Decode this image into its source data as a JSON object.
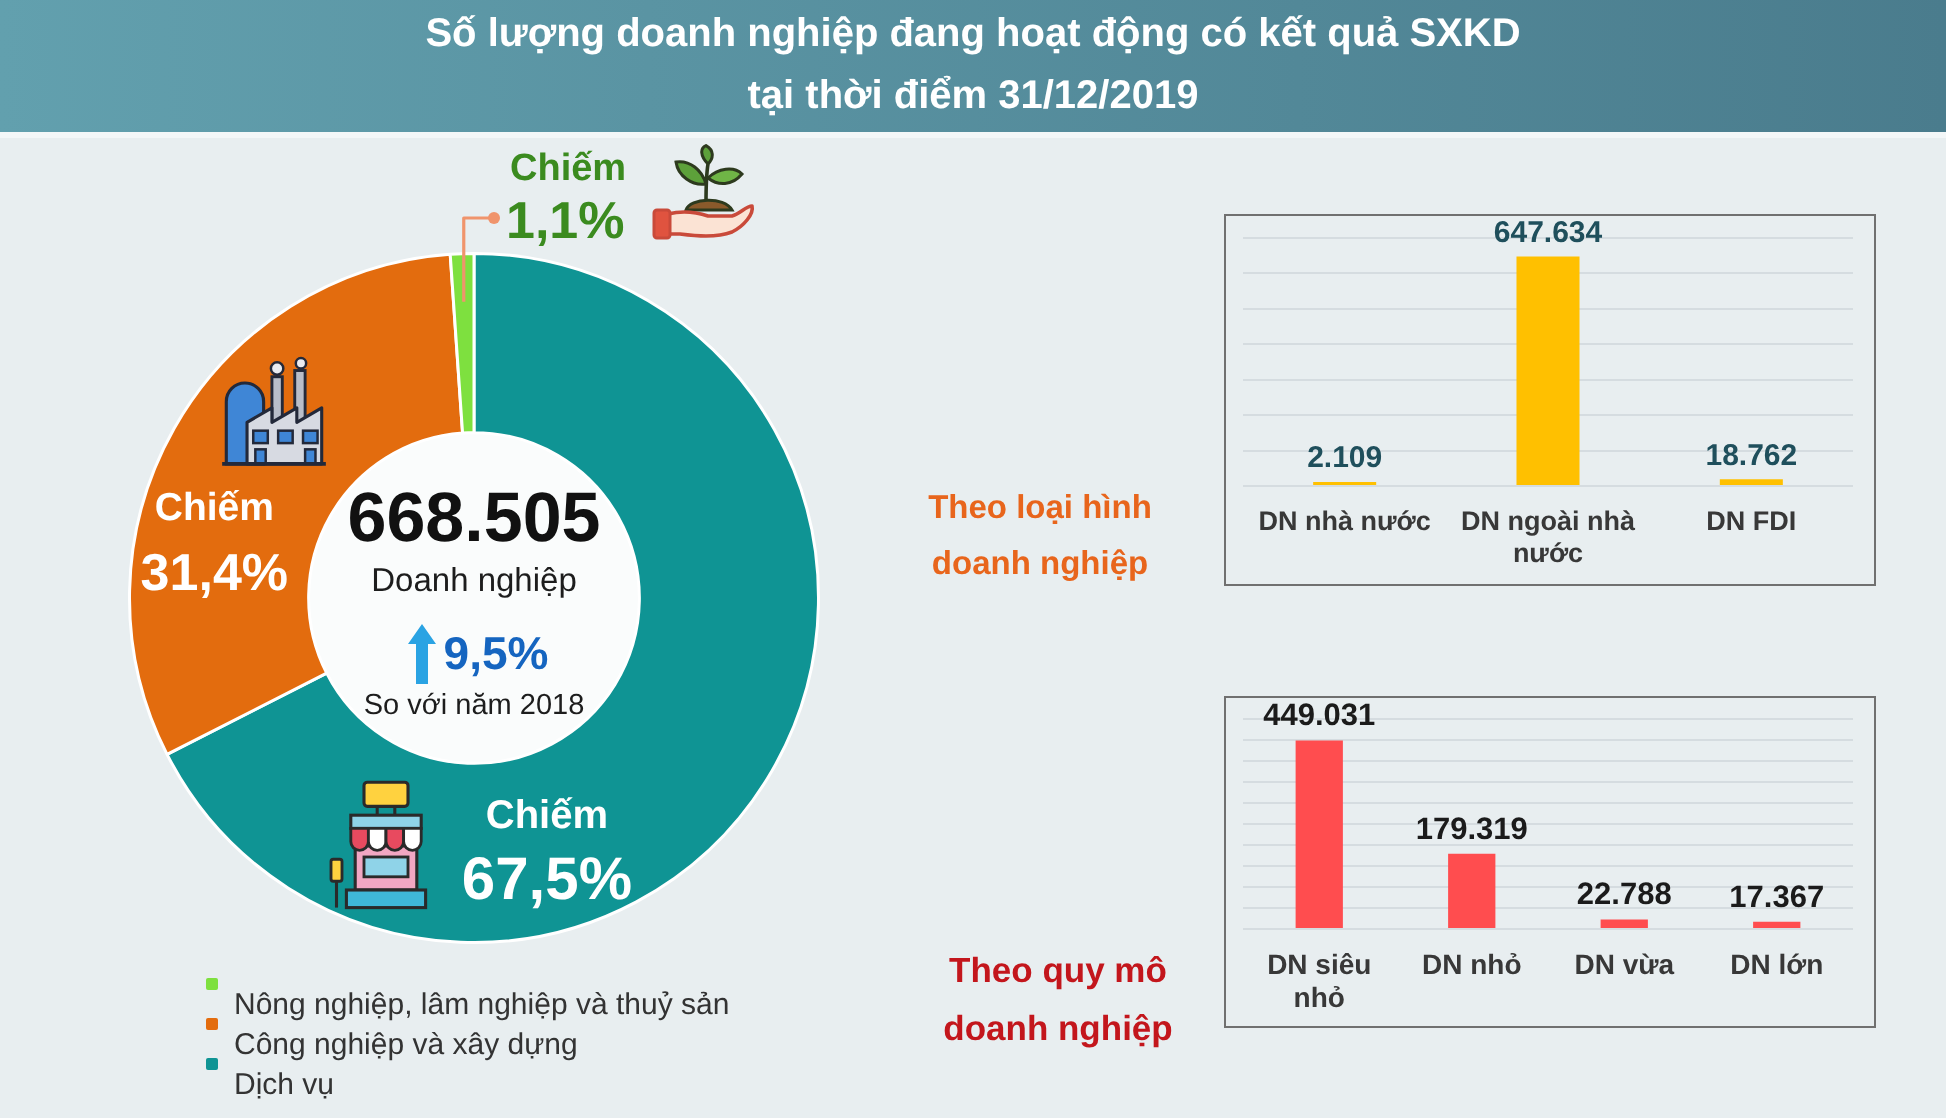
{
  "chart_data": [
    {
      "type": "donut",
      "title": "Số lượng doanh nghiệp đang hoạt động có kết quả SXKD",
      "subtitle": "tại thời điểm 31/12/2019",
      "categories": [
        "Nông nghiệp, lâm nghiệp và thuỷ sản",
        "Công nghiệp và xây dựng",
        "Dịch vụ"
      ],
      "values": [
        1.1,
        31.4,
        67.5
      ],
      "colors": [
        "#7ee03f",
        "#e36c0e",
        "#0f9494"
      ],
      "value_labels": [
        "Chiếm 1,1%",
        "Chiếm 31,4%",
        "Chiếm 67,5%"
      ],
      "annotations": [
        "668.505",
        "Doanh nghiệp",
        "9,5%",
        "So với năm 2018"
      ],
      "legend": "bottom left"
    },
    {
      "type": "bar",
      "title": "Theo loại hình doanh nghiệp",
      "categories": [
        "DN nhà nước",
        "DN ngoài nhà nước",
        "DN FDI"
      ],
      "values": [
        2109,
        647634,
        18762
      ],
      "color": "#ffc000",
      "value_labels": [
        "2.109",
        "647.634",
        "18.762"
      ],
      "ylim": [
        0,
        700000
      ],
      "yticks": [
        {
          "value": 0,
          "label": null
        },
        {
          "value": 100000,
          "label": null
        },
        {
          "value": 200000,
          "label": null
        },
        {
          "value": 300000,
          "label": null
        },
        {
          "value": 400000,
          "label": null
        },
        {
          "value": 500000,
          "label": null
        },
        {
          "value": 600000,
          "label": null
        },
        {
          "value": 700000,
          "label": null
        }
      ],
      "grid": "y",
      "tick_labels": "x"
    },
    {
      "type": "bar",
      "title": "Theo quy mô doanh nghiệp",
      "categories": [
        "DN siêu nhỏ",
        "DN nhỏ",
        "DN vừa",
        "DN lớn"
      ],
      "values": [
        449031,
        179319,
        22788,
        17367
      ],
      "color": "#ff4d4f",
      "value_labels": [
        "449.031",
        "179.319",
        "22.788",
        "17.367"
      ],
      "ylim": [
        0,
        500000
      ],
      "yticks": [
        {
          "value": 0,
          "label": null
        },
        {
          "value": 50000,
          "label": null
        },
        {
          "value": 100000,
          "label": null
        },
        {
          "value": 150000,
          "label": null
        },
        {
          "value": 200000,
          "label": null
        },
        {
          "value": 250000,
          "label": null
        },
        {
          "value": 300000,
          "label": null
        },
        {
          "value": 350000,
          "label": null
        },
        {
          "value": 400000,
          "label": null
        },
        {
          "value": 450000,
          "label": null
        },
        {
          "value": 500000,
          "label": null
        }
      ],
      "grid": "y",
      "tick_labels": "x"
    }
  ]
}
